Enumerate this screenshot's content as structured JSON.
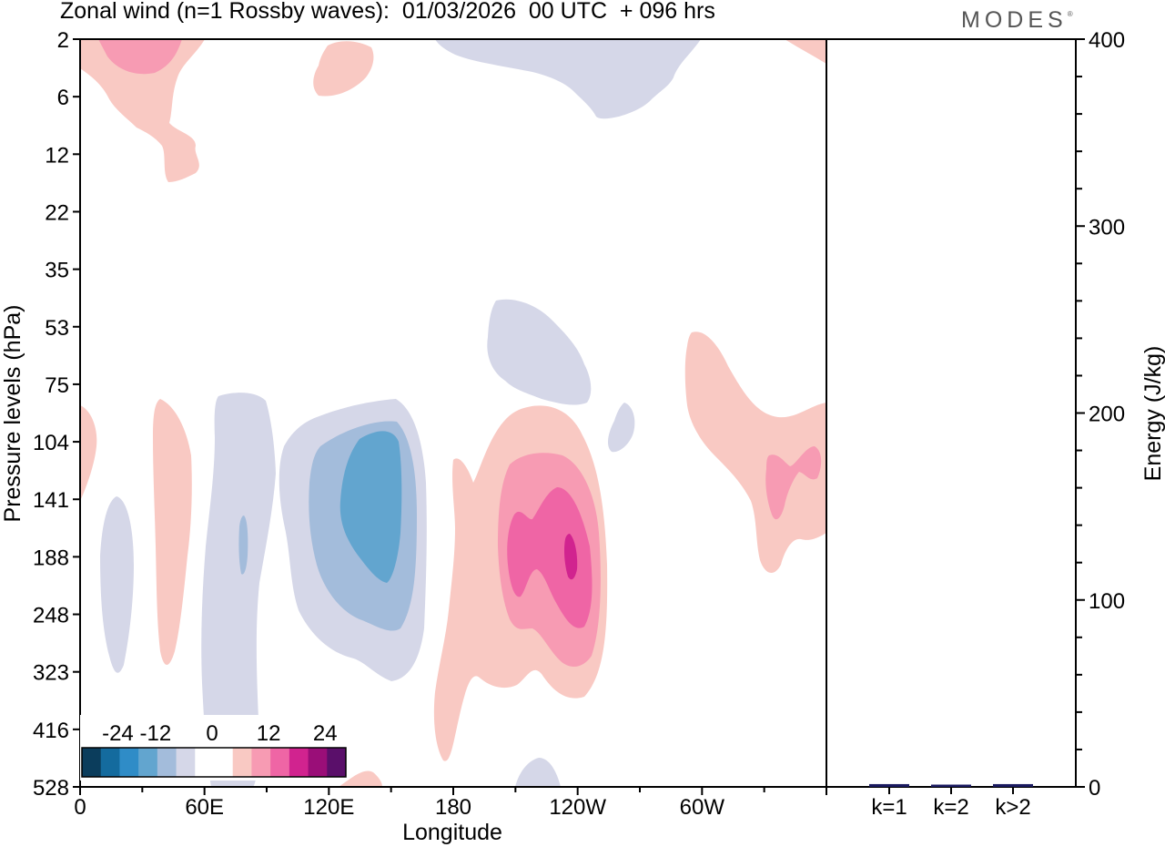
{
  "header": {
    "title": "Zonal wind (n=1 Rossby waves):  01/03/2026  00 UTC  + 096 hrs",
    "brand": "MODES"
  },
  "chart_data": [
    {
      "type": "contour",
      "title": "Zonal wind (n=1 Rossby waves):  01/03/2026  00 UTC  + 096 hrs",
      "xlabel": "Longitude",
      "ylabel": "Pressure levels (hPa)",
      "x_ticks": [
        "0",
        "60E",
        "120E",
        "180",
        "120W",
        "60W"
      ],
      "y_ticks": [
        "2",
        "6",
        "12",
        "22",
        "35",
        "53",
        "75",
        "104",
        "141",
        "188",
        "248",
        "323",
        "416",
        "528"
      ],
      "colorbar": {
        "labels": [
          "-24",
          "-12",
          "0",
          "12",
          "24"
        ],
        "colors": [
          "#0b3d5c",
          "#146b9e",
          "#2f8cc7",
          "#62a5cf",
          "#a3bcdb",
          "#d5d7e8",
          "#ffffff",
          "#ffffff",
          "#f9c9c3",
          "#f79bb3",
          "#ef65a5",
          "#d1238f",
          "#9a0e78",
          "#5a0f6a"
        ]
      },
      "features": [
        {
          "sign": "negative",
          "max_abs": 12,
          "longitude": "~140E",
          "levels": "75-416 hPa"
        },
        {
          "sign": "positive",
          "max_abs": 18,
          "longitude": "~115W",
          "levels": "104-416 hPa"
        },
        {
          "sign": "negative",
          "max_abs": 6,
          "longitude": "~160W",
          "levels": "2-10 hPa"
        },
        {
          "sign": "negative",
          "max_abs": 6,
          "longitude": "~170W",
          "levels": "35-90 hPa"
        },
        {
          "sign": "positive",
          "max_abs": 6,
          "longitude": "~45W",
          "levels": "53-248 hPa"
        }
      ]
    },
    {
      "type": "bar",
      "categories": [
        "k=1",
        "k=2",
        "k>2"
      ],
      "values": [
        1,
        0.5,
        1
      ],
      "ylabel": "Energy (J/kg)",
      "ylim": [
        0,
        400
      ],
      "y_ticks": [
        "0",
        "100",
        "200",
        "300",
        "400"
      ],
      "bar_color": "#1a1a60"
    }
  ]
}
